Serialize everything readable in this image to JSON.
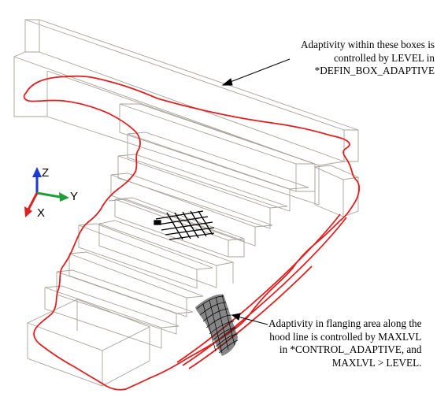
{
  "annotations": {
    "top": {
      "lines": [
        "Adaptivity within these boxes is",
        "controlled by LEVEL in",
        "*DEFIN_BOX_ADAPTIVE"
      ]
    },
    "bottom": {
      "lines": [
        "Adaptivity in flanging area along the",
        "hood line is controlled by MAXLVL",
        "in *CONTROL_ADAPTIVE, and",
        "MAXLVL > LEVEL."
      ]
    }
  },
  "axes": {
    "z": "Z",
    "y": "Y",
    "x": "X"
  },
  "colors": {
    "box_lines": "#a8a29a",
    "blank_outline": "#e02020",
    "mesh": "#000000",
    "axis_z": "#1a3ad6",
    "axis_y": "#1e9e3a",
    "axis_x": "#e02020"
  }
}
